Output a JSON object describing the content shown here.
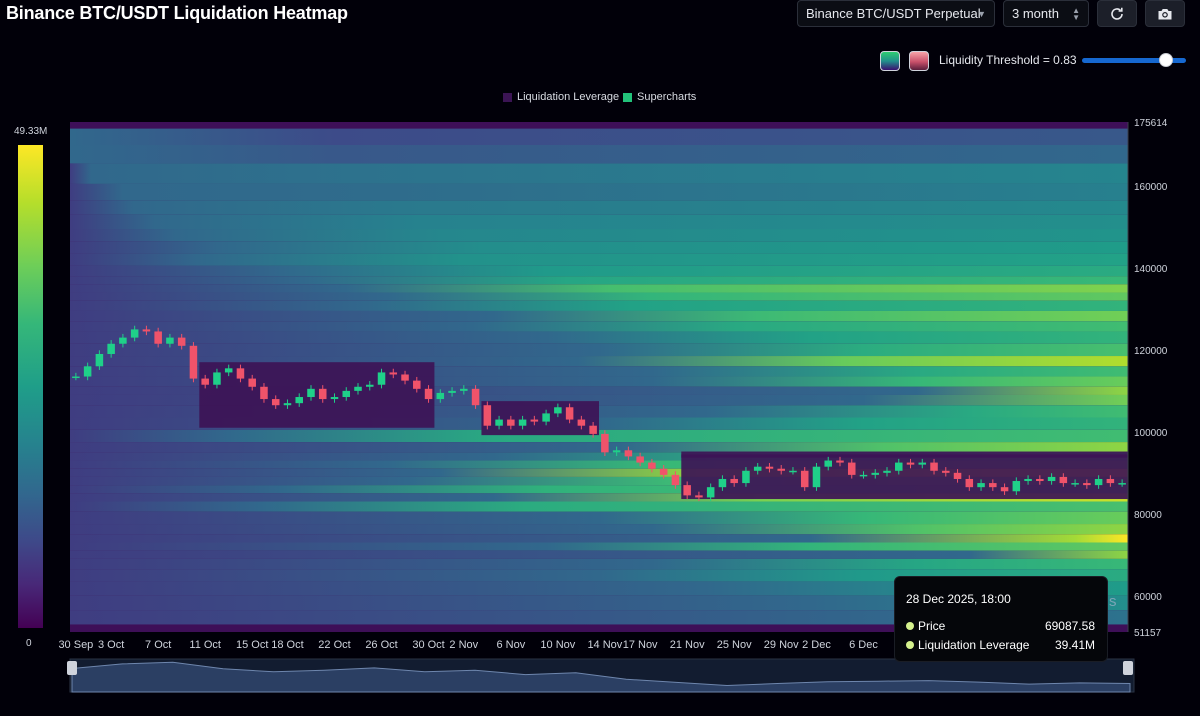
{
  "title": "Binance BTC/USDT Liquidation Heatmap",
  "controls": {
    "exchange_select": "Binance BTC/USDT Perpetual",
    "range_select": "3 month",
    "refresh_icon": "refresh-icon",
    "camera_icon": "camera-icon"
  },
  "threshold": {
    "label": "Liquidity Threshold = 0.83",
    "value": 0.83
  },
  "legend": {
    "items": [
      {
        "label": "Liquidation Leverage",
        "color": "#3b1454"
      },
      {
        "label": "Supercharts",
        "color": "#22c27a"
      }
    ]
  },
  "colorbar": {
    "max_label": "49.33M",
    "min_label": "0"
  },
  "tooltip": {
    "time": "28 Dec 2025, 18:00",
    "rows": [
      {
        "label": "Price",
        "value": "69087.58"
      },
      {
        "label": "Liquidation Leverage",
        "value": "39.41M"
      }
    ]
  },
  "watermark_fragment": "s",
  "chart_data": {
    "type": "heatmap",
    "title": "Binance BTC/USDT Liquidation Heatmap",
    "x_tick_labels": [
      "30 Sep",
      "3 Oct",
      "7 Oct",
      "11 Oct",
      "15 Oct",
      "18 Oct",
      "22 Oct",
      "26 Oct",
      "30 Oct",
      "2 Nov",
      "6 Nov",
      "10 Nov",
      "14 Nov",
      "17 Nov",
      "21 Nov",
      "25 Nov",
      "29 Nov",
      "2 Dec",
      "6 Dec"
    ],
    "y_tick_labels": [
      "175614",
      "160000",
      "140000",
      "120000",
      "100000",
      "80000",
      "60000",
      "51157"
    ],
    "y_ticks": [
      175614,
      160000,
      140000,
      120000,
      100000,
      80000,
      60000,
      51157
    ],
    "ylim": [
      51157,
      175614
    ],
    "colorscale": [
      "#440154",
      "#3e4989",
      "#26828e",
      "#1f9e89",
      "#35b779",
      "#6ece58",
      "#b5de2b",
      "#fde725"
    ],
    "bands": [
      {
        "price": 172000,
        "intensity": 0.18,
        "start": 0.0
      },
      {
        "price": 168000,
        "intensity": 0.22,
        "start": 0.0
      },
      {
        "price": 163000,
        "intensity": 0.3,
        "start": 0.02
      },
      {
        "price": 158000,
        "intensity": 0.28,
        "start": 0.05
      },
      {
        "price": 155000,
        "intensity": 0.32,
        "start": 0.06
      },
      {
        "price": 151000,
        "intensity": 0.35,
        "start": 0.08
      },
      {
        "price": 148000,
        "intensity": 0.38,
        "start": 0.1
      },
      {
        "price": 145000,
        "intensity": 0.42,
        "start": 0.14
      },
      {
        "price": 142000,
        "intensity": 0.45,
        "start": 0.12
      },
      {
        "price": 139000,
        "intensity": 0.5,
        "start": 0.2
      },
      {
        "price": 137000,
        "intensity": 0.58,
        "start": 0.22
      },
      {
        "price": 135000,
        "intensity": 0.75,
        "start": 0.26
      },
      {
        "price": 133000,
        "intensity": 0.68,
        "start": 0.3
      },
      {
        "price": 131000,
        "intensity": 0.55,
        "start": 0.28
      },
      {
        "price": 128000,
        "intensity": 0.72,
        "start": 0.4
      },
      {
        "price": 126000,
        "intensity": 0.6,
        "start": 0.38
      },
      {
        "price": 123000,
        "intensity": 0.55,
        "start": 0.45
      },
      {
        "price": 120000,
        "intensity": 0.62,
        "start": 0.5
      },
      {
        "price": 117000,
        "intensity": 0.85,
        "start": 0.48
      },
      {
        "price": 115000,
        "intensity": 0.6,
        "start": 0.55
      },
      {
        "price": 112000,
        "intensity": 0.7,
        "start": 0.55
      },
      {
        "price": 110000,
        "intensity": 0.95,
        "start": 0.8
      },
      {
        "price": 108000,
        "intensity": 0.88,
        "start": 0.75
      },
      {
        "price": 105000,
        "intensity": 0.6,
        "start": 0.6
      },
      {
        "price": 102000,
        "intensity": 0.55,
        "start": 0.5
      },
      {
        "price": 99000,
        "intensity": 0.6,
        "start": 0.15
      },
      {
        "price": 96000,
        "intensity": 0.78,
        "start": 0.52
      },
      {
        "price": 94000,
        "intensity": 0.62,
        "start": 0.4
      },
      {
        "price": 92000,
        "intensity": 0.7,
        "start": 0.3
      },
      {
        "price": 90000,
        "intensity": 0.97,
        "start": 0.35
      },
      {
        "price": 88000,
        "intensity": 0.72,
        "start": 0.32
      },
      {
        "price": 86000,
        "intensity": 0.66,
        "start": 0.2
      },
      {
        "price": 84000,
        "intensity": 0.9,
        "start": 0.4
      },
      {
        "price": 82000,
        "intensity": 0.62,
        "start": 0.18
      },
      {
        "price": 79000,
        "intensity": 0.7,
        "start": 0.5
      },
      {
        "price": 76000,
        "intensity": 0.78,
        "start": 0.55
      },
      {
        "price": 74000,
        "intensity": 1.0,
        "start": 0.7
      },
      {
        "price": 72000,
        "intensity": 0.68,
        "start": 0.45
      },
      {
        "price": 70000,
        "intensity": 0.95,
        "start": 0.85
      },
      {
        "price": 68000,
        "intensity": 0.58,
        "start": 0.55
      },
      {
        "price": 65000,
        "intensity": 0.5,
        "start": 0.5
      },
      {
        "price": 62000,
        "intensity": 0.42,
        "start": 0.6
      },
      {
        "price": 58000,
        "intensity": 0.35,
        "start": 0.7
      },
      {
        "price": 55000,
        "intensity": 0.3,
        "start": 0.8
      }
    ],
    "price_series": [
      {
        "date": "30 Sep",
        "price": 113500
      },
      {
        "date": "1 Oct",
        "price": 116000
      },
      {
        "date": "2 Oct",
        "price": 119000
      },
      {
        "date": "3 Oct",
        "price": 121500
      },
      {
        "date": "4 Oct",
        "price": 123000
      },
      {
        "date": "5 Oct",
        "price": 125000
      },
      {
        "date": "6 Oct",
        "price": 124500
      },
      {
        "date": "7 Oct",
        "price": 121500
      },
      {
        "date": "8 Oct",
        "price": 123000
      },
      {
        "date": "9 Oct",
        "price": 121000
      },
      {
        "date": "10 Oct",
        "price": 113000
      },
      {
        "date": "11 Oct",
        "price": 111500
      },
      {
        "date": "12 Oct",
        "price": 114500
      },
      {
        "date": "13 Oct",
        "price": 115500
      },
      {
        "date": "14 Oct",
        "price": 113000
      },
      {
        "date": "15 Oct",
        "price": 111000
      },
      {
        "date": "16 Oct",
        "price": 108000
      },
      {
        "date": "17 Oct",
        "price": 106500
      },
      {
        "date": "18 Oct",
        "price": 107000
      },
      {
        "date": "19 Oct",
        "price": 108500
      },
      {
        "date": "20 Oct",
        "price": 110500
      },
      {
        "date": "21 Oct",
        "price": 108000
      },
      {
        "date": "22 Oct",
        "price": 108500
      },
      {
        "date": "23 Oct",
        "price": 110000
      },
      {
        "date": "24 Oct",
        "price": 111000
      },
      {
        "date": "25 Oct",
        "price": 111500
      },
      {
        "date": "26 Oct",
        "price": 114500
      },
      {
        "date": "27 Oct",
        "price": 114000
      },
      {
        "date": "28 Oct",
        "price": 112500
      },
      {
        "date": "29 Oct",
        "price": 110500
      },
      {
        "date": "30 Oct",
        "price": 108000
      },
      {
        "date": "31 Oct",
        "price": 109500
      },
      {
        "date": "1 Nov",
        "price": 110000
      },
      {
        "date": "2 Nov",
        "price": 110500
      },
      {
        "date": "3 Nov",
        "price": 106500
      },
      {
        "date": "4 Nov",
        "price": 101500
      },
      {
        "date": "5 Nov",
        "price": 103000
      },
      {
        "date": "6 Nov",
        "price": 101500
      },
      {
        "date": "7 Nov",
        "price": 103000
      },
      {
        "date": "8 Nov",
        "price": 102500
      },
      {
        "date": "9 Nov",
        "price": 104500
      },
      {
        "date": "10 Nov",
        "price": 106000
      },
      {
        "date": "11 Nov",
        "price": 103000
      },
      {
        "date": "12 Nov",
        "price": 101500
      },
      {
        "date": "13 Nov",
        "price": 99500
      },
      {
        "date": "14 Nov",
        "price": 95000
      },
      {
        "date": "15 Nov",
        "price": 95500
      },
      {
        "date": "16 Nov",
        "price": 94000
      },
      {
        "date": "17 Nov",
        "price": 92500
      },
      {
        "date": "18 Nov",
        "price": 91000
      },
      {
        "date": "19 Nov",
        "price": 89500
      },
      {
        "date": "20 Nov",
        "price": 87000
      },
      {
        "date": "21 Nov",
        "price": 84500
      },
      {
        "date": "22 Nov",
        "price": 84000
      },
      {
        "date": "23 Nov",
        "price": 86500
      },
      {
        "date": "24 Nov",
        "price": 88500
      },
      {
        "date": "25 Nov",
        "price": 87500
      },
      {
        "date": "26 Nov",
        "price": 90500
      },
      {
        "date": "27 Nov",
        "price": 91500
      },
      {
        "date": "28 Nov",
        "price": 91000
      },
      {
        "date": "29 Nov",
        "price": 90500
      },
      {
        "date": "30 Nov",
        "price": 90500
      },
      {
        "date": "1 Dec",
        "price": 86500
      },
      {
        "date": "2 Dec",
        "price": 91500
      },
      {
        "date": "3 Dec",
        "price": 93000
      },
      {
        "date": "4 Dec",
        "price": 92500
      },
      {
        "date": "5 Dec",
        "price": 89500
      },
      {
        "date": "6 Dec",
        "price": 89500
      },
      {
        "date": "7 Dec",
        "price": 90000
      },
      {
        "date": "8 Dec",
        "price": 90500
      },
      {
        "date": "9 Dec",
        "price": 92500
      },
      {
        "date": "10 Dec",
        "price": 92000
      },
      {
        "date": "11 Dec",
        "price": 92500
      },
      {
        "date": "12 Dec",
        "price": 90500
      },
      {
        "date": "13 Dec",
        "price": 90000
      },
      {
        "date": "14 Dec",
        "price": 88500
      },
      {
        "date": "15 Dec",
        "price": 86500
      },
      {
        "date": "16 Dec",
        "price": 87500
      },
      {
        "date": "17 Dec",
        "price": 86500
      },
      {
        "date": "18 Dec",
        "price": 85500
      },
      {
        "date": "19 Dec",
        "price": 88000
      },
      {
        "date": "20 Dec",
        "price": 88500
      },
      {
        "date": "21 Dec",
        "price": 88000
      },
      {
        "date": "22 Dec",
        "price": 89000
      },
      {
        "date": "23 Dec",
        "price": 87500
      },
      {
        "date": "24 Dec",
        "price": 87500
      },
      {
        "date": "25 Dec",
        "price": 87000
      },
      {
        "date": "26 Dec",
        "price": 88500
      },
      {
        "date": "27 Dec",
        "price": 87500
      },
      {
        "date": "28 Dec",
        "price": 87500
      }
    ],
    "liquidated_zones": [
      {
        "from": "11 Oct",
        "to": "30 Oct",
        "price": 101000
      },
      {
        "from": "4 Nov",
        "to": "13 Nov",
        "price": 99200
      },
      {
        "from": "21 Nov",
        "to": "28 Dec",
        "price": 83600
      },
      {
        "from": "21 Nov",
        "to": "28 Dec",
        "price": 93700
      }
    ],
    "navigator_series": [
      113500,
      121500,
      124500,
      113000,
      108000,
      110500,
      114500,
      108000,
      110500,
      103000,
      106000,
      95000,
      89500,
      84000,
      87500,
      90500,
      91500,
      92500,
      90000,
      86500,
      88500,
      87500
    ]
  }
}
